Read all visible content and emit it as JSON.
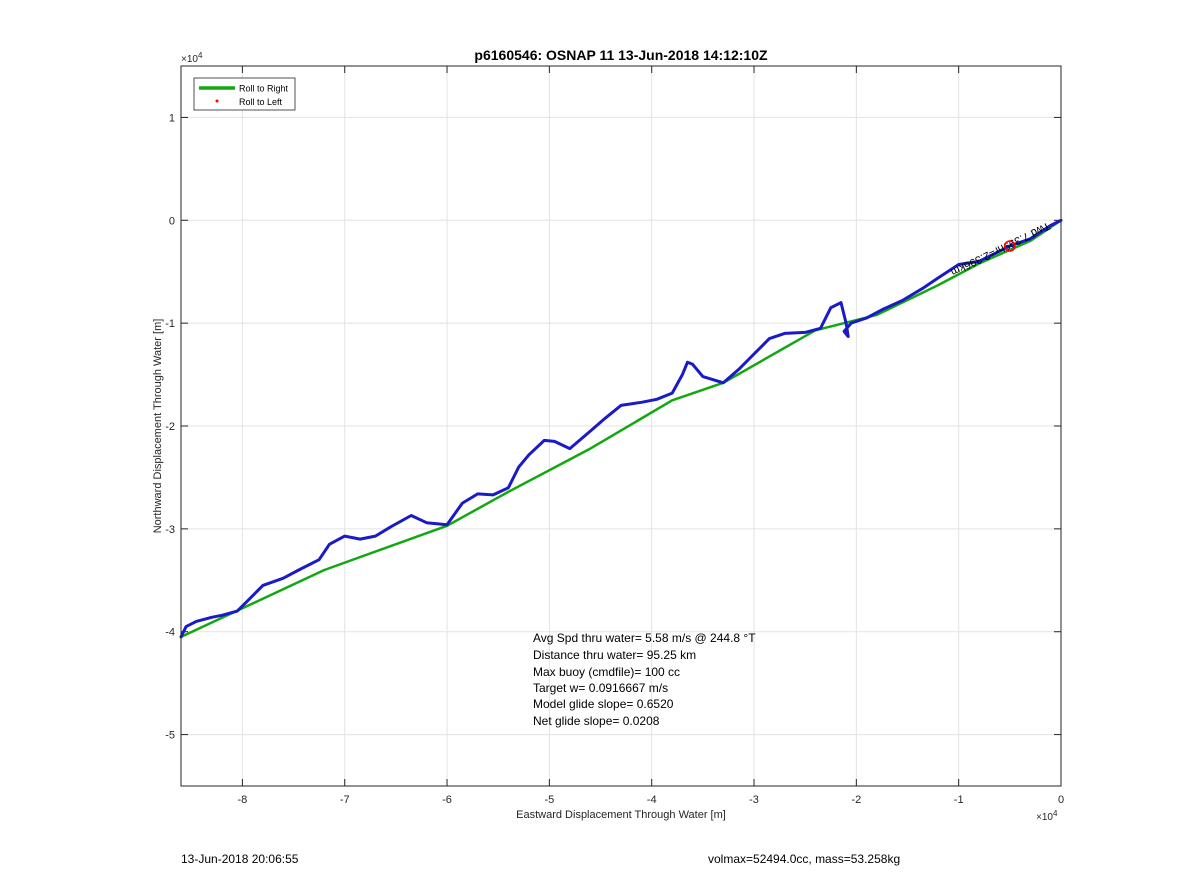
{
  "chart_data": {
    "type": "line",
    "title": "p6160546: OSNAP 11 13-Jun-2018 14:12:10Z",
    "xlabel": "Eastward Displacement Through Water [m]",
    "ylabel": "Northward Displacement Through Water [m]",
    "x_exponent_label": "×10",
    "y_exponent_label": "×10",
    "exponent": "4",
    "xlim": [
      -8.6,
      0
    ],
    "ylim": [
      -5.5,
      1.5
    ],
    "xticks": [
      -8,
      -7,
      -6,
      -5,
      -4,
      -3,
      -2,
      -1,
      0
    ],
    "yticks": [
      1,
      0,
      -1,
      -2,
      -3,
      -4,
      -5
    ],
    "xtick_labels": [
      "-8",
      "-7",
      "-6",
      "-5",
      "-4",
      "-3",
      "-2",
      "-1",
      "0"
    ],
    "ytick_labels": [
      "1",
      "0",
      "-1",
      "-2",
      "-3",
      "-4",
      "-5"
    ],
    "grid": true,
    "legend_position": "top-left",
    "series": [
      {
        "name": "Roll to Right",
        "color": "#11a811",
        "x": [
          -8.6,
          -7.2,
          -6.0,
          -5.4,
          -4.6,
          -3.8,
          -3.3,
          -2.4,
          -1.8,
          -1.2,
          -0.8,
          -0.3,
          0
        ],
        "y": [
          -4.05,
          -3.4,
          -2.97,
          -2.64,
          -2.22,
          -1.75,
          -1.58,
          -1.07,
          -0.92,
          -0.63,
          -0.42,
          -0.2,
          0
        ]
      },
      {
        "name": "Roll to Left",
        "color": "#ff0000",
        "x": [],
        "y": []
      },
      {
        "name": "",
        "color": "#1a1ac8",
        "x": [
          -8.6,
          -8.55,
          -8.45,
          -8.3,
          -8.2,
          -8.05,
          -7.95,
          -7.8,
          -7.6,
          -7.45,
          -7.25,
          -7.15,
          -7.0,
          -6.85,
          -6.7,
          -6.55,
          -6.35,
          -6.2,
          -6.0,
          -5.85,
          -5.7,
          -5.55,
          -5.4,
          -5.3,
          -5.2,
          -5.05,
          -4.95,
          -4.8,
          -4.6,
          -4.45,
          -4.3,
          -4.1,
          -3.95,
          -3.8,
          -3.7,
          -3.65,
          -3.6,
          -3.5,
          -3.3,
          -3.15,
          -3.0,
          -2.85,
          -2.7,
          -2.5,
          -2.35,
          -2.25,
          -2.15,
          -2.1,
          -2.08,
          -2.12,
          -2.05,
          -1.9,
          -1.75,
          -1.55,
          -1.35,
          -1.2,
          -1.0,
          -0.8,
          -0.5,
          -0.3,
          -0.1,
          0
        ],
        "y": [
          -4.05,
          -3.95,
          -3.9,
          -3.86,
          -3.84,
          -3.8,
          -3.7,
          -3.55,
          -3.48,
          -3.4,
          -3.3,
          -3.15,
          -3.07,
          -3.1,
          -3.07,
          -2.98,
          -2.87,
          -2.94,
          -2.96,
          -2.75,
          -2.66,
          -2.67,
          -2.6,
          -2.4,
          -2.28,
          -2.14,
          -2.15,
          -2.22,
          -2.05,
          -1.92,
          -1.8,
          -1.77,
          -1.74,
          -1.68,
          -1.5,
          -1.38,
          -1.4,
          -1.52,
          -1.58,
          -1.45,
          -1.3,
          -1.15,
          -1.1,
          -1.09,
          -1.05,
          -0.85,
          -0.8,
          -1.0,
          -1.13,
          -1.08,
          -1.0,
          -0.95,
          -0.87,
          -0.78,
          -0.66,
          -0.56,
          -0.43,
          -0.4,
          -0.25,
          -0.18,
          -0.05,
          0
        ]
      }
    ],
    "annotations": {
      "stats": [
        "Avg Spd thru water=  5.58 m/s @ 244.8 °T",
        "Distance thru water= 95.25 km",
        "Max buoy (cmdfile)= 100 cc",
        "Target w= 0.0916667 m/s",
        "Model glide slope= 0.6520",
        "Net glide slope= 0.0208"
      ],
      "rotated_label": "Twd 7.399hr=2.396km",
      "marker_x": -0.5,
      "marker_y": -0.25,
      "marker_color": "#ff0000"
    }
  },
  "footer": {
    "left": "13-Jun-2018 20:06:55",
    "right": "volmax=52494.0cc, mass=53.258kg"
  }
}
